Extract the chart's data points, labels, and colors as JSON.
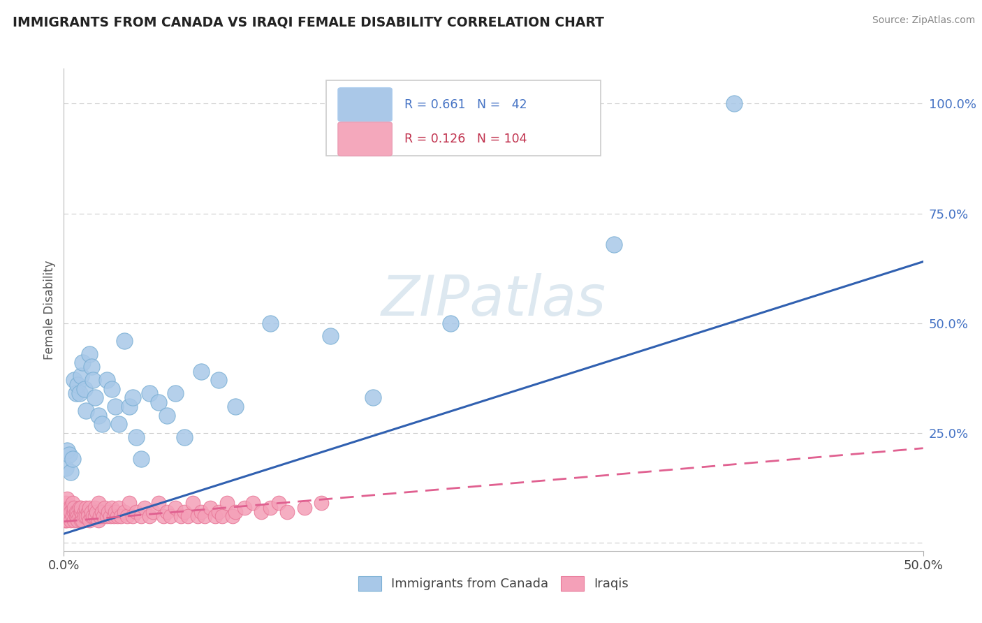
{
  "title": "IMMIGRANTS FROM CANADA VS IRAQI FEMALE DISABILITY CORRELATION CHART",
  "source": "Source: ZipAtlas.com",
  "ylabel": "Female Disability",
  "legend_label1": "Immigrants from Canada",
  "legend_label2": "Iraqis",
  "blue_color": "#a8c8e8",
  "pink_color": "#f4a0b8",
  "blue_edge_color": "#7aafd4",
  "pink_edge_color": "#e87898",
  "blue_line_color": "#3060b0",
  "pink_line_color": "#e06090",
  "legend_blue_fill": "#aac8e8",
  "legend_pink_fill": "#f4a8bc",
  "blue_label_color": "#4472c4",
  "pink_label_color": "#c0304c",
  "watermark_color": "#e0e8f0",
  "blue_scatter": [
    [
      0.001,
      0.17
    ],
    [
      0.002,
      0.21
    ],
    [
      0.003,
      0.2
    ],
    [
      0.004,
      0.16
    ],
    [
      0.005,
      0.19
    ],
    [
      0.006,
      0.37
    ],
    [
      0.007,
      0.34
    ],
    [
      0.008,
      0.36
    ],
    [
      0.009,
      0.34
    ],
    [
      0.01,
      0.38
    ],
    [
      0.011,
      0.41
    ],
    [
      0.012,
      0.35
    ],
    [
      0.013,
      0.3
    ],
    [
      0.015,
      0.43
    ],
    [
      0.016,
      0.4
    ],
    [
      0.017,
      0.37
    ],
    [
      0.018,
      0.33
    ],
    [
      0.02,
      0.29
    ],
    [
      0.022,
      0.27
    ],
    [
      0.025,
      0.37
    ],
    [
      0.028,
      0.35
    ],
    [
      0.03,
      0.31
    ],
    [
      0.032,
      0.27
    ],
    [
      0.035,
      0.46
    ],
    [
      0.038,
      0.31
    ],
    [
      0.04,
      0.33
    ],
    [
      0.042,
      0.24
    ],
    [
      0.045,
      0.19
    ],
    [
      0.05,
      0.34
    ],
    [
      0.055,
      0.32
    ],
    [
      0.06,
      0.29
    ],
    [
      0.065,
      0.34
    ],
    [
      0.07,
      0.24
    ],
    [
      0.08,
      0.39
    ],
    [
      0.09,
      0.37
    ],
    [
      0.1,
      0.31
    ],
    [
      0.12,
      0.5
    ],
    [
      0.155,
      0.47
    ],
    [
      0.18,
      0.33
    ],
    [
      0.225,
      0.5
    ],
    [
      0.32,
      0.68
    ],
    [
      0.39,
      1.0
    ]
  ],
  "pink_scatter": [
    [
      0.0005,
      0.05
    ],
    [
      0.0007,
      0.06
    ],
    [
      0.001,
      0.05
    ],
    [
      0.001,
      0.08
    ],
    [
      0.001,
      0.06
    ],
    [
      0.001,
      0.09
    ],
    [
      0.002,
      0.06
    ],
    [
      0.002,
      0.07
    ],
    [
      0.002,
      0.08
    ],
    [
      0.002,
      0.05
    ],
    [
      0.002,
      0.1
    ],
    [
      0.003,
      0.06
    ],
    [
      0.003,
      0.07
    ],
    [
      0.003,
      0.08
    ],
    [
      0.003,
      0.06
    ],
    [
      0.004,
      0.05
    ],
    [
      0.004,
      0.08
    ],
    [
      0.004,
      0.07
    ],
    [
      0.005,
      0.06
    ],
    [
      0.005,
      0.08
    ],
    [
      0.005,
      0.06
    ],
    [
      0.005,
      0.09
    ],
    [
      0.006,
      0.07
    ],
    [
      0.006,
      0.05
    ],
    [
      0.006,
      0.08
    ],
    [
      0.007,
      0.06
    ],
    [
      0.007,
      0.07
    ],
    [
      0.008,
      0.07
    ],
    [
      0.008,
      0.06
    ],
    [
      0.008,
      0.05
    ],
    [
      0.009,
      0.08
    ],
    [
      0.009,
      0.06
    ],
    [
      0.01,
      0.05
    ],
    [
      0.01,
      0.07
    ],
    [
      0.01,
      0.08
    ],
    [
      0.011,
      0.06
    ],
    [
      0.011,
      0.05
    ],
    [
      0.012,
      0.07
    ],
    [
      0.012,
      0.06
    ],
    [
      0.013,
      0.06
    ],
    [
      0.013,
      0.08
    ],
    [
      0.014,
      0.07
    ],
    [
      0.014,
      0.06
    ],
    [
      0.015,
      0.05
    ],
    [
      0.015,
      0.08
    ],
    [
      0.016,
      0.06
    ],
    [
      0.016,
      0.07
    ],
    [
      0.017,
      0.06
    ],
    [
      0.018,
      0.08
    ],
    [
      0.018,
      0.06
    ],
    [
      0.019,
      0.07
    ],
    [
      0.02,
      0.05
    ],
    [
      0.02,
      0.09
    ],
    [
      0.021,
      0.06
    ],
    [
      0.022,
      0.07
    ],
    [
      0.023,
      0.06
    ],
    [
      0.024,
      0.08
    ],
    [
      0.025,
      0.06
    ],
    [
      0.026,
      0.07
    ],
    [
      0.027,
      0.06
    ],
    [
      0.028,
      0.08
    ],
    [
      0.029,
      0.06
    ],
    [
      0.03,
      0.07
    ],
    [
      0.031,
      0.06
    ],
    [
      0.032,
      0.08
    ],
    [
      0.033,
      0.06
    ],
    [
      0.035,
      0.07
    ],
    [
      0.037,
      0.06
    ],
    [
      0.038,
      0.09
    ],
    [
      0.04,
      0.06
    ],
    [
      0.042,
      0.07
    ],
    [
      0.045,
      0.06
    ],
    [
      0.047,
      0.08
    ],
    [
      0.05,
      0.06
    ],
    [
      0.052,
      0.07
    ],
    [
      0.055,
      0.09
    ],
    [
      0.058,
      0.06
    ],
    [
      0.06,
      0.07
    ],
    [
      0.062,
      0.06
    ],
    [
      0.065,
      0.08
    ],
    [
      0.068,
      0.06
    ],
    [
      0.07,
      0.07
    ],
    [
      0.072,
      0.06
    ],
    [
      0.075,
      0.09
    ],
    [
      0.078,
      0.06
    ],
    [
      0.08,
      0.07
    ],
    [
      0.082,
      0.06
    ],
    [
      0.085,
      0.08
    ],
    [
      0.088,
      0.06
    ],
    [
      0.09,
      0.07
    ],
    [
      0.092,
      0.06
    ],
    [
      0.095,
      0.09
    ],
    [
      0.098,
      0.06
    ],
    [
      0.1,
      0.07
    ],
    [
      0.105,
      0.08
    ],
    [
      0.11,
      0.09
    ],
    [
      0.115,
      0.07
    ],
    [
      0.12,
      0.08
    ],
    [
      0.125,
      0.09
    ],
    [
      0.13,
      0.07
    ],
    [
      0.14,
      0.08
    ],
    [
      0.15,
      0.09
    ]
  ],
  "xlim": [
    0.0,
    0.5
  ],
  "ylim": [
    -0.02,
    1.08
  ],
  "blue_trend_x": [
    0.0,
    0.5
  ],
  "blue_trend_y": [
    0.02,
    0.64
  ],
  "pink_trend_x": [
    0.0,
    0.5
  ],
  "pink_trend_y": [
    0.048,
    0.215
  ],
  "yticks": [
    0.0,
    0.25,
    0.5,
    0.75,
    1.0
  ],
  "ytick_labels_right": [
    "",
    "25.0%",
    "50.0%",
    "75.0%",
    "100.0%"
  ],
  "xticks": [
    0.0,
    0.5
  ],
  "xtick_labels": [
    "0.0%",
    "50.0%"
  ]
}
